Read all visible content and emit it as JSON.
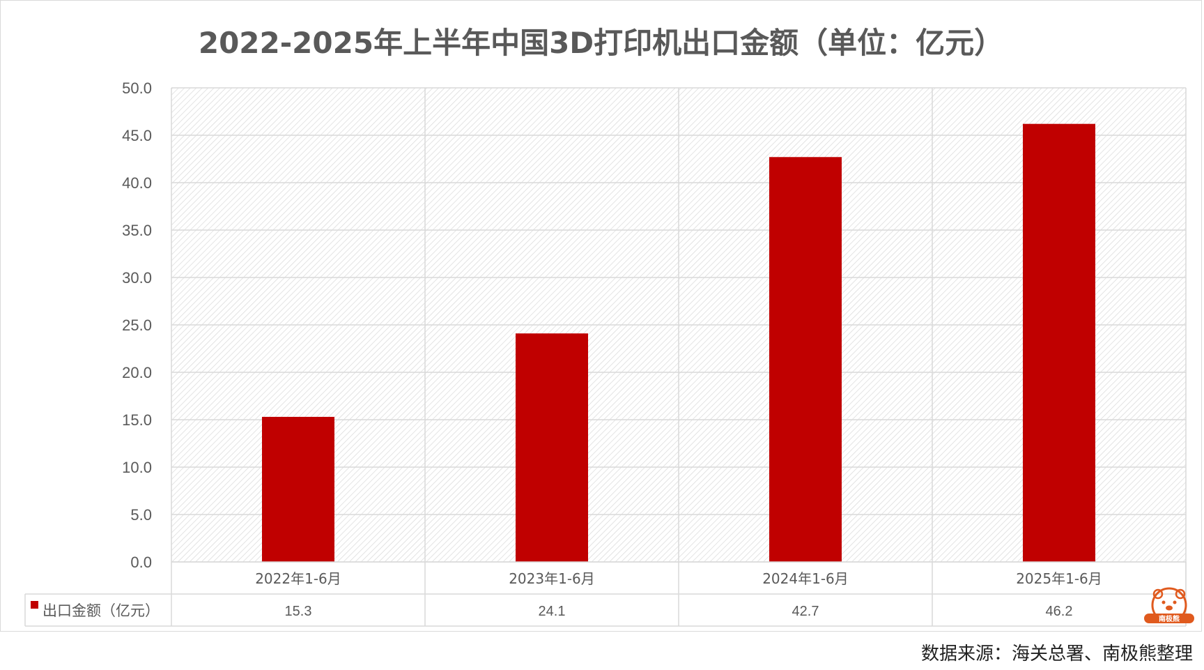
{
  "title": "2022-2025年上半年中国3D打印机出口金额（单位：亿元）",
  "source": "数据来源：海关总署、南极熊整理",
  "logo_text": "南极熊",
  "colors": {
    "bar": "#C00000",
    "grid": "#d9d9d9",
    "hatch": "#dcdcdc",
    "text": "#595959"
  },
  "chart_data": {
    "type": "bar",
    "title": "2022-2025年上半年中国3D打印机出口金额（单位：亿元）",
    "categories": [
      "2022年1-6月",
      "2023年1-6月",
      "2024年1-6月",
      "2025年1-6月"
    ],
    "series": [
      {
        "name": "出口金额（亿元）",
        "values": [
          15.3,
          24.1,
          42.7,
          46.2
        ],
        "value_labels": [
          "15.3",
          "24.1",
          "42.7",
          "46.2"
        ]
      }
    ],
    "ylim": [
      0,
      50
    ],
    "yticks": [
      "0.0",
      "5.0",
      "10.0",
      "15.0",
      "20.0",
      "25.0",
      "30.0",
      "35.0",
      "40.0",
      "45.0",
      "50.0"
    ],
    "ytick_values": [
      0,
      5,
      10,
      15,
      20,
      25,
      30,
      35,
      40,
      45,
      50
    ],
    "grid": true,
    "data_table": true,
    "xlabel": "",
    "ylabel": ""
  }
}
